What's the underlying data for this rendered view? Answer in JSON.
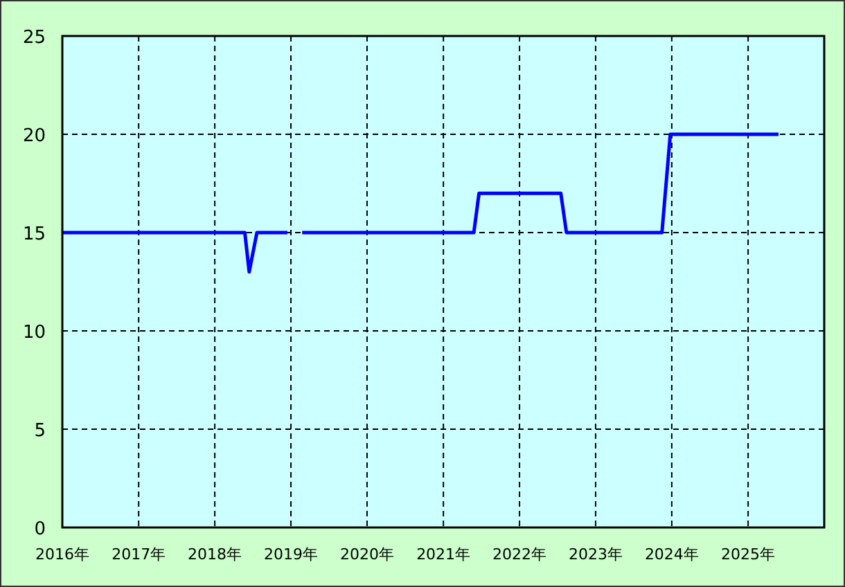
{
  "chart_data": {
    "type": "line",
    "x": [
      "2016-01-01",
      "2018-05-25",
      "2018-06-15",
      "2018-07-22",
      "2018-12-15",
      "2019-01-15",
      "2019-02-24",
      "2021-05-27",
      "2021-06-21",
      "2022-07-18",
      "2022-08-14",
      "2023-11-15",
      "2023-12-25",
      "2025-05-27"
    ],
    "series": [
      {
        "color": "#0000ff",
        "values": [
          15,
          15,
          13,
          15,
          15,
          null,
          15,
          15,
          17,
          17,
          15,
          15,
          20,
          20
        ]
      }
    ],
    "xlim": [
      "2016-01-01",
      "2026-01-01"
    ],
    "xticks": [
      {
        "value": "2016-01-01",
        "label": "2016年"
      },
      {
        "value": "2017-01-01",
        "label": "2017年"
      },
      {
        "value": "2018-01-01",
        "label": "2018年"
      },
      {
        "value": "2019-01-01",
        "label": "2019年"
      },
      {
        "value": "2020-01-01",
        "label": "2020年"
      },
      {
        "value": "2021-01-01",
        "label": "2021年"
      },
      {
        "value": "2022-01-01",
        "label": "2022年"
      },
      {
        "value": "2023-01-01",
        "label": "2023年"
      },
      {
        "value": "2024-01-01",
        "label": "2024年"
      },
      {
        "value": "2025-01-01",
        "label": "2025年"
      }
    ],
    "ylim": [
      0,
      25
    ],
    "yticks": [
      0,
      5,
      10,
      15,
      20,
      25
    ],
    "grid": true
  }
}
